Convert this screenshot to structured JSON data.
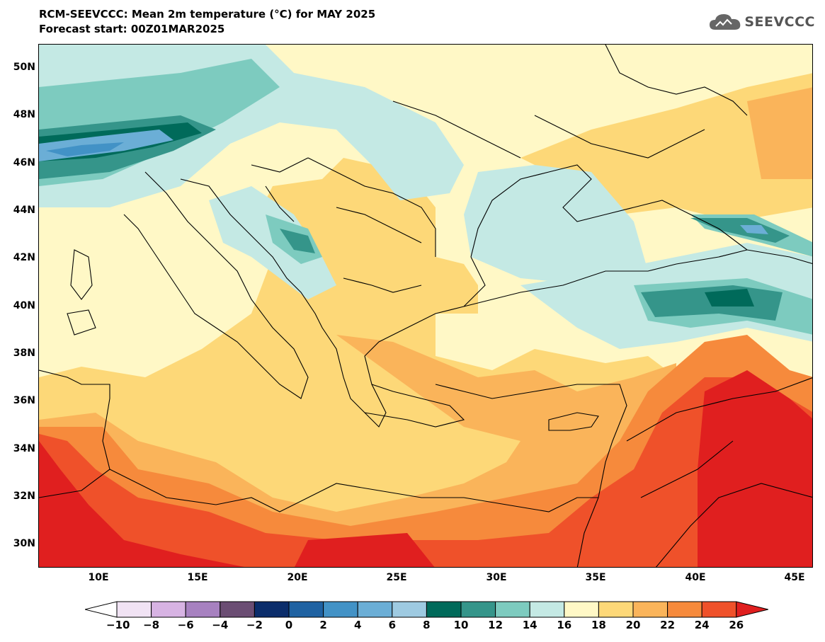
{
  "header": {
    "title": "RCM-SEEVCCC: Mean 2m temperature (°C) for MAY 2025",
    "subtitle": "Forecast start: 00Z01MAR2025"
  },
  "logo": {
    "text": "SEEVCCC",
    "icon": "cloud-icon"
  },
  "map": {
    "lat_labels": [
      "50N",
      "48N",
      "46N",
      "44N",
      "42N",
      "40N",
      "38N",
      "36N",
      "34N",
      "32N",
      "30N"
    ],
    "lon_labels": [
      "10E",
      "15E",
      "20E",
      "25E",
      "30E",
      "35E",
      "40E",
      "45E"
    ],
    "palette": {
      "c8_10": "#006a5a",
      "c10_12": "#35958a",
      "c12_14": "#7dcbbf",
      "c14_16": "#c4e9e4",
      "c16_18": "#fff8c6",
      "c18_20": "#fdd878",
      "c20_22": "#fab45a",
      "c22_24": "#f68a3c",
      "c24_26": "#ef512a",
      "gt26": "#e01f1f",
      "c4_6": "#6baed6",
      "c2_4": "#4292c6"
    }
  },
  "colorbar": {
    "labels": [
      "−10",
      "−8",
      "−6",
      "−4",
      "−2",
      "0",
      "2",
      "4",
      "6",
      "8",
      "10",
      "12",
      "14",
      "16",
      "18",
      "20",
      "22",
      "24",
      "26"
    ],
    "colors": [
      "#ffffff",
      "#f1e3f4",
      "#d7b3e3",
      "#a781c0",
      "#6b4d73",
      "#0b2d6b",
      "#1f62a2",
      "#4292c6",
      "#6baed6",
      "#9ecae1",
      "#006a5a",
      "#35958a",
      "#7dcbbf",
      "#c4e9e4",
      "#fff8c6",
      "#fdd878",
      "#fab45a",
      "#f68a3c",
      "#ef512a",
      "#e01f1f"
    ]
  }
}
